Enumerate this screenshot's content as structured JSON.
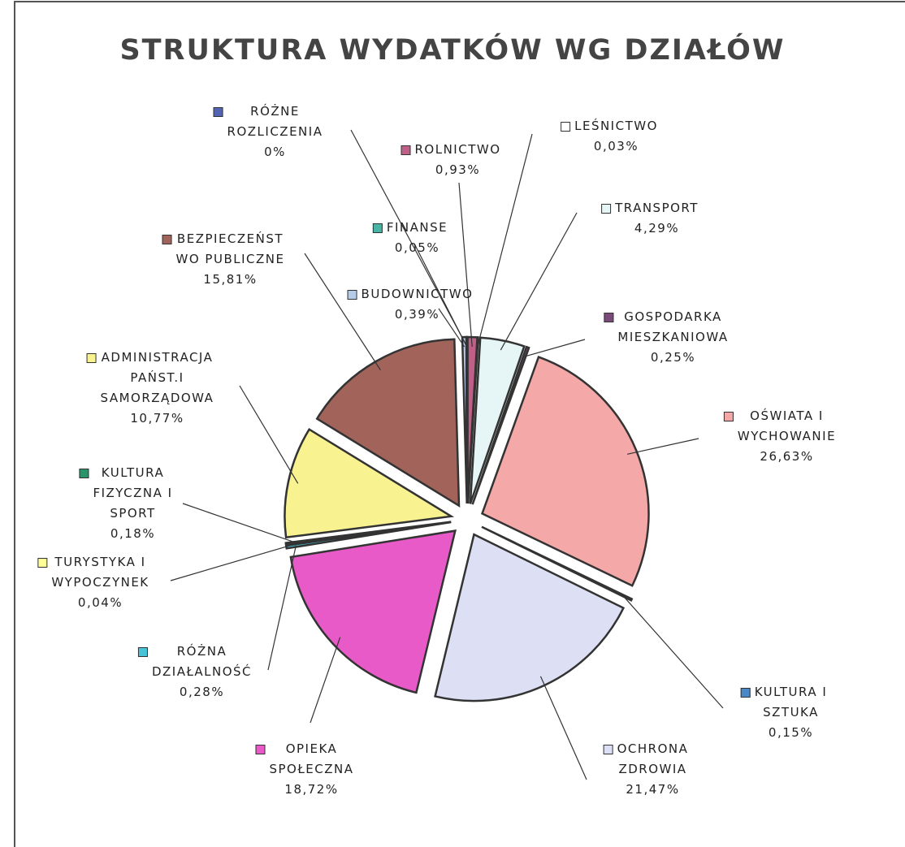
{
  "chart_data": {
    "type": "pie",
    "title": "STRUKTURA WYDATKÓW WG DZIAŁÓW",
    "categories": [
      "ROLNICTWO",
      "LEŚNICTWO",
      "TRANSPORT",
      "GOSPODARKA\nMIESZKANIOWA",
      "OŚWIATA I\nWYCHOWANIE",
      "KULTURA I\nSZTUKA",
      "OCHRONA\nZDROWIA",
      "OPIEKA\nSPOŁECZNA",
      "RÓŻNA\nDZIAŁALNOŚĆ",
      "TURYSTYKA I\nWYPOCZYNEK",
      "KULTURA\nFIZYCZNA I\nSPORT",
      "ADMINISTRACJA\nPAŃST.I\nSAMORZĄDOWA",
      "BEZPIECZEŃST\nWO PUBLICZNE",
      "BUDOWNICTWO",
      "FINANSE",
      "RÓŻNE\nROZLICZENIA"
    ],
    "values": [
      0.93,
      0.03,
      4.29,
      0.25,
      26.63,
      0.15,
      21.47,
      18.72,
      0.28,
      0.04,
      0.18,
      10.77,
      15.81,
      0.39,
      0.05,
      0
    ],
    "value_labels": [
      "0,93%",
      "0,03%",
      "4,29%",
      "0,25%",
      "26,63%",
      "0,15%",
      "21,47%",
      "18,72%",
      "0,28%",
      "0,04%",
      "0,18%",
      "10,77%",
      "15,81%",
      "0,39%",
      "0,05%",
      "0%"
    ],
    "colors": [
      "#c06088",
      "#ffffff",
      "#e6f6f6",
      "#7a4a7a",
      "#f4a8a8",
      "#4a88c8",
      "#dde0f4",
      "#e85ac8",
      "#48c4d8",
      "#ffff99",
      "#28946a",
      "#f8f290",
      "#a2645a",
      "#b4cce8",
      "#48b4a4",
      "#5464b4"
    ]
  }
}
